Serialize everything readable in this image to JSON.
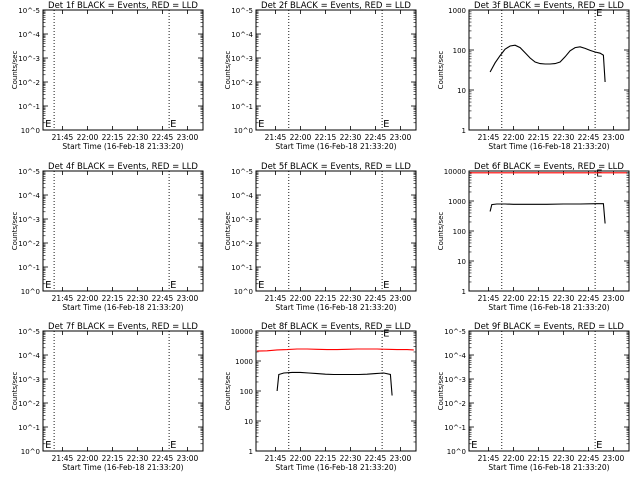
{
  "figure": {
    "background": "#ffffff",
    "colors": {
      "events": "#000000",
      "lld": "#ff0000",
      "axes": "#000000"
    }
  },
  "chart_data": [
    {
      "type": "line",
      "title": "Det 1f BLACK = Events, RED = LLD",
      "xlabel": "Start Time (16-Feb-18 21:33:20)",
      "ylabel": "Counts/sec",
      "xticks": [
        "21:45",
        "22:00",
        "22:15",
        "22:30",
        "22:45",
        "23:00"
      ],
      "yticks": [
        "10^0",
        "10^-1",
        "10^-2",
        "10^-3",
        "10^-4",
        "10^-5"
      ],
      "ylog": true,
      "ylim": [
        0.0,
        -5.0
      ],
      "vlines": [
        "21:40",
        "22:49"
      ],
      "markers": [
        {
          "label": "E",
          "x": "21:34",
          "y": -0.3
        },
        {
          "label": "E",
          "x": "22:49",
          "y": -0.3
        }
      ],
      "series": []
    },
    {
      "type": "line",
      "title": "Det 2f BLACK = Events, RED = LLD",
      "xlabel": "Start Time (16-Feb-18 21:33:20)",
      "ylabel": "Counts/sec",
      "xticks": [
        "21:45",
        "22:00",
        "22:15",
        "22:30",
        "22:45",
        "23:00"
      ],
      "yticks": [
        "10^0",
        "10^-1",
        "10^-2",
        "10^-3",
        "10^-4",
        "10^-5"
      ],
      "ylog": true,
      "ylim": [
        0.0,
        -5.0
      ],
      "vlines": [
        "21:53",
        "22:49"
      ],
      "markers": [
        {
          "label": "E",
          "x": "21:34",
          "y": -0.3
        },
        {
          "label": "E",
          "x": "22:49",
          "y": -0.3
        }
      ],
      "series": []
    },
    {
      "type": "line",
      "title": "Det 3f BLACK = Events, RED = LLD",
      "xlabel": "Start Time (16-Feb-18 21:33:20)",
      "ylabel": "Counts/sec",
      "xticks": [
        "21:45",
        "22:00",
        "22:15",
        "22:30",
        "22:45",
        "23:00"
      ],
      "yticks": [
        "1",
        "10",
        "100",
        "1000"
      ],
      "ylog": true,
      "ylim": [
        0.0,
        3.0
      ],
      "vlines": [
        "21:53",
        "22:49"
      ],
      "markers": [
        {
          "label": "E",
          "x": "22:49",
          "y": 2.95
        }
      ],
      "series": [
        {
          "name": "Events",
          "color": "#000000",
          "x": [
            "21:46",
            "21:49",
            "21:52",
            "21:55",
            "21:58",
            "22:01",
            "22:04",
            "22:07",
            "22:10",
            "22:13",
            "22:16",
            "22:19",
            "22:22",
            "22:25",
            "22:28",
            "22:31",
            "22:34",
            "22:37",
            "22:40",
            "22:43",
            "22:46",
            "22:49",
            "22:52",
            "22:54",
            "22:55"
          ],
          "values": [
            1.45,
            1.68,
            1.86,
            2.02,
            2.1,
            2.12,
            2.06,
            1.93,
            1.8,
            1.7,
            1.66,
            1.65,
            1.65,
            1.66,
            1.7,
            1.83,
            1.98,
            2.06,
            2.08,
            2.04,
            1.99,
            1.95,
            1.92,
            1.87,
            1.2
          ]
        }
      ]
    },
    {
      "type": "line",
      "title": "Det 4f BLACK = Events, RED = LLD",
      "xlabel": "Start Time (16-Feb-18 21:33:20)",
      "ylabel": "Counts/sec",
      "xticks": [
        "21:45",
        "22:00",
        "22:15",
        "22:30",
        "22:45",
        "23:00"
      ],
      "yticks": [
        "10^0",
        "10^-1",
        "10^-2",
        "10^-3",
        "10^-4",
        "10^-5"
      ],
      "ylog": true,
      "ylim": [
        0.0,
        -5.0
      ],
      "vlines": [
        "21:40",
        "22:49"
      ],
      "markers": [
        {
          "label": "E",
          "x": "21:34",
          "y": -0.3
        },
        {
          "label": "E",
          "x": "22:49",
          "y": -0.3
        }
      ],
      "series": []
    },
    {
      "type": "line",
      "title": "Det 5f BLACK = Events, RED = LLD",
      "xlabel": "Start Time (16-Feb-18 21:33:20)",
      "ylabel": "Counts/sec",
      "xticks": [
        "21:45",
        "22:00",
        "22:15",
        "22:30",
        "22:45",
        "23:00"
      ],
      "yticks": [
        "10^0",
        "10^-1",
        "10^-2",
        "10^-3",
        "10^-4",
        "10^-5"
      ],
      "ylog": true,
      "ylim": [
        0.0,
        -5.0
      ],
      "vlines": [
        "21:53",
        "22:49"
      ],
      "markers": [
        {
          "label": "E",
          "x": "21:34",
          "y": -0.3
        },
        {
          "label": "E",
          "x": "22:49",
          "y": -0.3
        }
      ],
      "series": []
    },
    {
      "type": "line",
      "title": "Det 6f BLACK = Events, RED = LLD",
      "xlabel": "Start Time (16-Feb-18 21:33:20)",
      "ylabel": "Counts/sec",
      "xticks": [
        "21:45",
        "22:00",
        "22:15",
        "22:30",
        "22:45",
        "23:00"
      ],
      "yticks": [
        "1",
        "10",
        "100",
        "1000",
        "10000"
      ],
      "ylog": true,
      "ylim": [
        0.0,
        4.0
      ],
      "vlines": [
        "21:53",
        "22:49"
      ],
      "markers": [
        {
          "label": "E",
          "x": "22:49",
          "y": 3.95
        }
      ],
      "series": [
        {
          "name": "LLD",
          "color": "#ff0000",
          "x": [
            "21:34",
            "21:45",
            "22:00",
            "22:15",
            "22:30",
            "22:45",
            "22:55",
            "23:08"
          ],
          "values": [
            3.94,
            3.94,
            3.94,
            3.94,
            3.94,
            3.94,
            3.94,
            3.94
          ]
        },
        {
          "name": "Events",
          "color": "#000000",
          "x": [
            "21:46",
            "21:47",
            "21:50",
            "21:55",
            "22:00",
            "22:10",
            "22:20",
            "22:30",
            "22:40",
            "22:50",
            "22:54",
            "22:55"
          ],
          "values": [
            2.65,
            2.88,
            2.9,
            2.9,
            2.89,
            2.89,
            2.89,
            2.9,
            2.9,
            2.91,
            2.91,
            2.25
          ]
        }
      ]
    },
    {
      "type": "line",
      "title": "Det 7f BLACK = Events, RED = LLD",
      "xlabel": "Start Time (16-Feb-18 21:33:20)",
      "ylabel": "Counts/sec",
      "xticks": [
        "21:45",
        "22:00",
        "22:15",
        "22:30",
        "22:45",
        "23:00"
      ],
      "yticks": [
        "10^0",
        "10^-1",
        "10^-2",
        "10^-3",
        "10^-4",
        "10^-5"
      ],
      "ylog": true,
      "ylim": [
        0.0,
        -5.0
      ],
      "vlines": [
        "21:40",
        "22:49"
      ],
      "markers": [
        {
          "label": "E",
          "x": "21:34",
          "y": -0.3
        },
        {
          "label": "E",
          "x": "22:49",
          "y": -0.3
        }
      ],
      "series": []
    },
    {
      "type": "line",
      "title": "Det 8f BLACK = Events, RED = LLD",
      "xlabel": "Start Time (16-Feb-18 21:33:20)",
      "ylabel": "Counts/sec",
      "xticks": [
        "21:45",
        "22:00",
        "22:15",
        "22:30",
        "22:45",
        "23:00"
      ],
      "yticks": [
        "1",
        "10",
        "100",
        "1000",
        "10000"
      ],
      "ylog": true,
      "ylim": [
        0.0,
        4.0
      ],
      "vlines": [
        "21:53",
        "22:49"
      ],
      "markers": [
        {
          "label": "E",
          "x": "22:49",
          "y": 3.95
        }
      ],
      "series": [
        {
          "name": "LLD",
          "color": "#ff0000",
          "x": [
            "21:34",
            "21:40",
            "21:46",
            "21:52",
            "21:58",
            "22:04",
            "22:10",
            "22:16",
            "22:22",
            "22:28",
            "22:34",
            "22:40",
            "22:46",
            "22:52",
            "22:58",
            "23:04",
            "23:08"
          ],
          "values": [
            3.33,
            3.34,
            3.37,
            3.38,
            3.4,
            3.4,
            3.39,
            3.38,
            3.38,
            3.39,
            3.4,
            3.4,
            3.4,
            3.39,
            3.38,
            3.38,
            3.37
          ]
        },
        {
          "name": "Events",
          "color": "#000000",
          "x": [
            "21:46",
            "21:47",
            "21:50",
            "21:55",
            "22:00",
            "22:05",
            "22:10",
            "22:15",
            "22:20",
            "22:25",
            "22:30",
            "22:35",
            "22:40",
            "22:45",
            "22:50",
            "22:54",
            "22:55"
          ],
          "values": [
            2.0,
            2.55,
            2.6,
            2.62,
            2.62,
            2.6,
            2.58,
            2.56,
            2.55,
            2.55,
            2.55,
            2.55,
            2.56,
            2.58,
            2.6,
            2.55,
            1.85
          ]
        }
      ]
    },
    {
      "type": "line",
      "title": "Det 9f BLACK = Events, RED = LLD",
      "xlabel": "Start Time (16-Feb-18 21:33:20)",
      "ylabel": "Counts/sec",
      "xticks": [
        "21:45",
        "22:00",
        "22:15",
        "22:30",
        "22:45",
        "23:00"
      ],
      "yticks": [
        "10^0",
        "10^-1",
        "10^-2",
        "10^-3",
        "10^-4",
        "10^-5"
      ],
      "ylog": true,
      "ylim": [
        0.0,
        -5.0
      ],
      "vlines": [
        "21:53",
        "22:49"
      ],
      "markers": [
        {
          "label": "E",
          "x": "21:34",
          "y": -0.3
        },
        {
          "label": "E",
          "x": "22:49",
          "y": -0.3
        }
      ],
      "series": []
    }
  ]
}
